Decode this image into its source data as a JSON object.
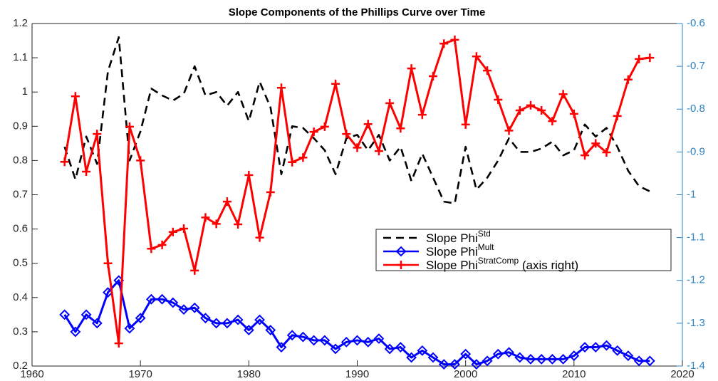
{
  "chart_data": {
    "type": "line",
    "title": "Slope Components of the Phillips Curve over Time",
    "x": [
      1963,
      1964,
      1965,
      1966,
      1967,
      1968,
      1969,
      1970,
      1971,
      1972,
      1973,
      1974,
      1975,
      1976,
      1977,
      1978,
      1979,
      1980,
      1981,
      1982,
      1983,
      1984,
      1985,
      1986,
      1987,
      1988,
      1989,
      1990,
      1991,
      1992,
      1993,
      1994,
      1995,
      1996,
      1997,
      1998,
      1999,
      2000,
      2001,
      2002,
      2003,
      2004,
      2005,
      2006,
      2007,
      2008,
      2009,
      2010,
      2011,
      2012,
      2013,
      2014,
      2015,
      2016,
      2017
    ],
    "xlim": [
      1960,
      2020
    ],
    "xticks": [
      1960,
      1970,
      1980,
      1990,
      2000,
      2010,
      2020
    ],
    "ylim": [
      0.2,
      1.2
    ],
    "yticks": [
      0.2,
      0.3,
      0.4,
      0.5,
      0.6,
      0.7,
      0.8,
      0.9,
      1,
      1.1,
      1.2
    ],
    "y2lim": [
      -1.4,
      -0.6
    ],
    "y2ticks": [
      -1.4,
      -1.3,
      -1.2,
      -1.1,
      -1,
      -0.9,
      -0.8,
      -0.7,
      -0.6
    ],
    "y2_color": "#2a84c4",
    "grid": false,
    "legend_position": "right",
    "series": [
      {
        "name": "Slope Phi",
        "name_superscript": "Std",
        "color": "#000000",
        "style": "dashed",
        "marker": "none",
        "values": [
          0.84,
          0.745,
          0.87,
          0.79,
          1.06,
          1.16,
          0.8,
          0.885,
          1.01,
          0.99,
          0.975,
          0.995,
          1.075,
          0.99,
          1.0,
          0.96,
          1.0,
          0.915,
          1.03,
          0.955,
          0.76,
          0.9,
          0.895,
          0.865,
          0.83,
          0.76,
          0.865,
          0.875,
          0.83,
          0.875,
          0.8,
          0.84,
          0.74,
          0.82,
          0.75,
          0.68,
          0.675,
          0.84,
          0.715,
          0.75,
          0.8,
          0.865,
          0.825,
          0.825,
          0.835,
          0.855,
          0.815,
          0.83,
          0.905,
          0.87,
          0.895,
          0.84,
          0.77,
          0.725,
          0.71
        ]
      },
      {
        "name": "Slope Phi",
        "name_superscript": "Mult",
        "color": "#0000ff",
        "style": "solid",
        "marker": "diamond",
        "values": [
          0.35,
          0.3,
          0.35,
          0.325,
          0.415,
          0.45,
          0.31,
          0.34,
          0.395,
          0.395,
          0.385,
          0.365,
          0.37,
          0.34,
          0.325,
          0.325,
          0.335,
          0.305,
          0.335,
          0.305,
          0.255,
          0.29,
          0.285,
          0.275,
          0.275,
          0.25,
          0.27,
          0.275,
          0.27,
          0.28,
          0.25,
          0.255,
          0.225,
          0.245,
          0.225,
          0.205,
          0.205,
          0.235,
          0.205,
          0.215,
          0.235,
          0.24,
          0.225,
          0.22,
          0.22,
          0.22,
          0.22,
          0.23,
          0.255,
          0.255,
          0.26,
          0.245,
          0.23,
          0.215,
          0.215
        ]
      },
      {
        "name": "Slope Phi",
        "name_superscript": "StratComp",
        "name_suffix": " (axis right)",
        "color": "#ff0000",
        "style": "solid",
        "marker": "plus",
        "axis": "y2",
        "values": [
          -0.923,
          -0.77,
          -0.946,
          -0.858,
          -1.16,
          -1.347,
          -0.841,
          -0.92,
          -1.126,
          -1.117,
          -1.087,
          -1.079,
          -1.177,
          -1.053,
          -1.068,
          -1.016,
          -1.069,
          -0.954,
          -1.1,
          -0.994,
          -0.75,
          -0.924,
          -0.913,
          -0.853,
          -0.841,
          -0.741,
          -0.858,
          -0.89,
          -0.835,
          -0.898,
          -0.786,
          -0.845,
          -0.705,
          -0.813,
          -0.723,
          -0.647,
          -0.638,
          -0.836,
          -0.677,
          -0.71,
          -0.778,
          -0.85,
          -0.803,
          -0.791,
          -0.803,
          -0.828,
          -0.765,
          -0.811,
          -0.908,
          -0.88,
          -0.901,
          -0.816,
          -0.731,
          -0.683,
          -0.68
        ]
      }
    ]
  }
}
